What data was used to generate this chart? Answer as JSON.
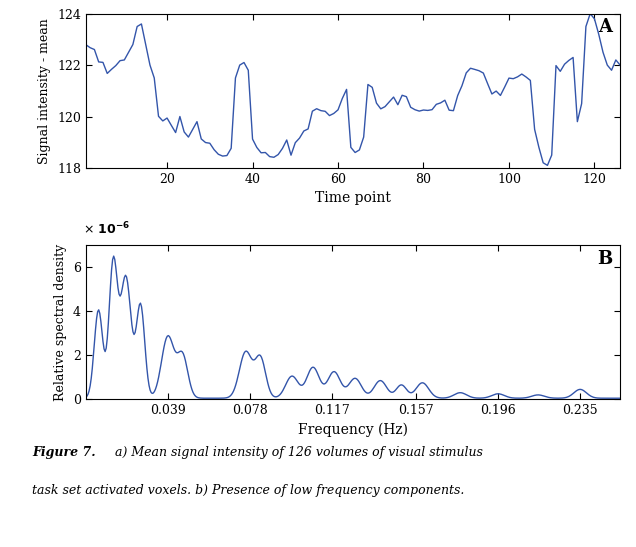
{
  "line_color": "#3355aa",
  "line_width": 1.0,
  "background_color": "#ffffff",
  "panel_A": {
    "xlabel": "Time point",
    "ylabel": "Signal intensity - mean",
    "xlim": [
      1,
      126
    ],
    "ylim": [
      118,
      124
    ],
    "yticks": [
      118,
      120,
      122,
      124
    ],
    "xticks": [
      20,
      40,
      60,
      80,
      100,
      120
    ],
    "label": "A"
  },
  "panel_B": {
    "xlabel": "Frequency (Hz)",
    "ylabel": "Relative spectral density",
    "xlim": [
      0,
      0.254
    ],
    "ylim": [
      0,
      7
    ],
    "yticks": [
      0,
      2,
      4,
      6
    ],
    "xticks": [
      0.039,
      0.078,
      0.117,
      0.157,
      0.196,
      0.235
    ],
    "xticklabels": [
      "0.039",
      "0.078",
      "0.117",
      "0.157",
      "0.196",
      "0.235"
    ],
    "label": "B"
  }
}
